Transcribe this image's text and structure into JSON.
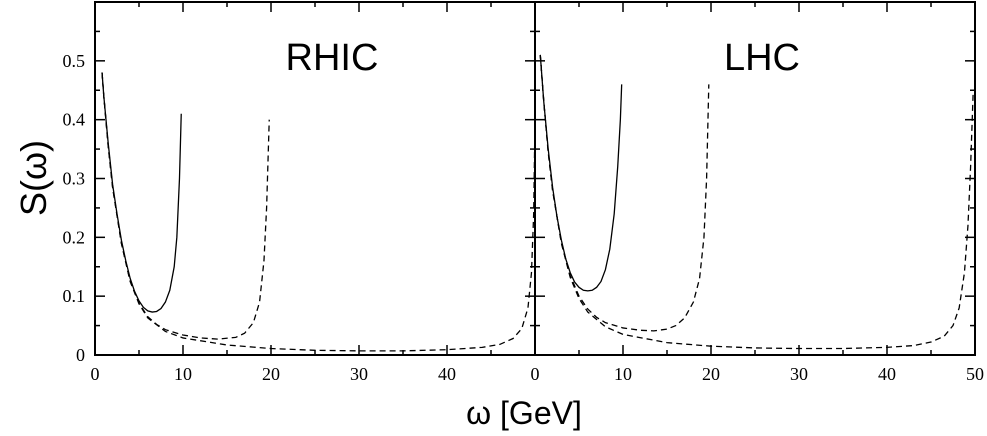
{
  "chart_data": {
    "type": "line",
    "ylabel": "S(ω)",
    "xlabel": "ω [GeV]",
    "xlim": [
      0,
      50
    ],
    "ylim": [
      0,
      0.6
    ],
    "x_ticks": [
      0,
      10,
      20,
      30,
      40,
      50
    ],
    "y_ticks": [
      0,
      0.1,
      0.2,
      0.3,
      0.4,
      0.5
    ],
    "shared_y_axis": true,
    "panels": [
      {
        "title": "RHIC",
        "series": [
          {
            "style": "solid",
            "points": [
              [
                0.8,
                0.48
              ],
              [
                1.0,
                0.44
              ],
              [
                1.5,
                0.36
              ],
              [
                2.0,
                0.29
              ],
              [
                2.5,
                0.24
              ],
              [
                3.0,
                0.195
              ],
              [
                3.5,
                0.16
              ],
              [
                4.0,
                0.13
              ],
              [
                4.5,
                0.108
              ],
              [
                5.0,
                0.092
              ],
              [
                5.5,
                0.081
              ],
              [
                6.0,
                0.075
              ],
              [
                6.5,
                0.073
              ],
              [
                7.0,
                0.074
              ],
              [
                7.5,
                0.079
              ],
              [
                8.0,
                0.09
              ],
              [
                8.5,
                0.11
              ],
              [
                9.0,
                0.15
              ],
              [
                9.3,
                0.2
              ],
              [
                9.6,
                0.3
              ],
              [
                9.8,
                0.41
              ]
            ]
          },
          {
            "style": "dashed",
            "points": [
              [
                0.8,
                0.48
              ],
              [
                1.0,
                0.44
              ],
              [
                1.5,
                0.355
              ],
              [
                2.0,
                0.285
              ],
              [
                3.0,
                0.19
              ],
              [
                4.0,
                0.125
              ],
              [
                5.0,
                0.088
              ],
              [
                6.0,
                0.065
              ],
              [
                7.0,
                0.052
              ],
              [
                8.0,
                0.043
              ],
              [
                10.0,
                0.034
              ],
              [
                12.0,
                0.029
              ],
              [
                14.0,
                0.027
              ],
              [
                16.0,
                0.03
              ],
              [
                17.0,
                0.037
              ],
              [
                18.0,
                0.055
              ],
              [
                18.7,
                0.09
              ],
              [
                19.2,
                0.16
              ],
              [
                19.5,
                0.25
              ],
              [
                19.8,
                0.4
              ]
            ]
          },
          {
            "style": "dashed",
            "points": [
              [
                0.8,
                0.48
              ],
              [
                1.0,
                0.44
              ],
              [
                1.5,
                0.355
              ],
              [
                2.0,
                0.285
              ],
              [
                3.0,
                0.19
              ],
              [
                4.0,
                0.125
              ],
              [
                5.0,
                0.087
              ],
              [
                6.0,
                0.063
              ],
              [
                8.0,
                0.04
              ],
              [
                10.0,
                0.029
              ],
              [
                15.0,
                0.017
              ],
              [
                20.0,
                0.011
              ],
              [
                25.0,
                0.008
              ],
              [
                30.0,
                0.007
              ],
              [
                35.0,
                0.007
              ],
              [
                40.0,
                0.009
              ],
              [
                44.0,
                0.013
              ],
              [
                46.0,
                0.018
              ],
              [
                47.5,
                0.028
              ],
              [
                48.5,
                0.045
              ],
              [
                49.2,
                0.08
              ],
              [
                49.6,
                0.14
              ],
              [
                49.85,
                0.24
              ],
              [
                50.0,
                0.4
              ]
            ]
          }
        ]
      },
      {
        "title": "LHC",
        "series": [
          {
            "style": "solid",
            "points": [
              [
                0.6,
                0.51
              ],
              [
                1.0,
                0.43
              ],
              [
                1.5,
                0.35
              ],
              [
                2.0,
                0.285
              ],
              [
                2.5,
                0.235
              ],
              [
                3.0,
                0.195
              ],
              [
                3.5,
                0.163
              ],
              [
                4.0,
                0.14
              ],
              [
                4.5,
                0.124
              ],
              [
                5.0,
                0.115
              ],
              [
                5.5,
                0.11
              ],
              [
                6.0,
                0.109
              ],
              [
                6.5,
                0.11
              ],
              [
                7.0,
                0.115
              ],
              [
                7.5,
                0.125
              ],
              [
                8.0,
                0.145
              ],
              [
                8.5,
                0.18
              ],
              [
                9.0,
                0.24
              ],
              [
                9.4,
                0.32
              ],
              [
                9.7,
                0.4
              ],
              [
                9.85,
                0.46
              ]
            ]
          },
          {
            "style": "dashed",
            "points": [
              [
                0.6,
                0.51
              ],
              [
                1.0,
                0.43
              ],
              [
                1.5,
                0.345
              ],
              [
                2.0,
                0.28
              ],
              [
                3.0,
                0.19
              ],
              [
                4.0,
                0.135
              ],
              [
                5.0,
                0.1
              ],
              [
                6.0,
                0.078
              ],
              [
                7.0,
                0.064
              ],
              [
                8.0,
                0.055
              ],
              [
                10.0,
                0.046
              ],
              [
                12.0,
                0.042
              ],
              [
                13.5,
                0.041
              ],
              [
                15.0,
                0.044
              ],
              [
                16.0,
                0.05
              ],
              [
                17.0,
                0.063
              ],
              [
                18.0,
                0.09
              ],
              [
                18.7,
                0.13
              ],
              [
                19.2,
                0.2
              ],
              [
                19.5,
                0.3
              ],
              [
                19.75,
                0.46
              ]
            ]
          },
          {
            "style": "dashed",
            "points": [
              [
                0.6,
                0.51
              ],
              [
                1.0,
                0.43
              ],
              [
                1.5,
                0.345
              ],
              [
                2.0,
                0.28
              ],
              [
                3.0,
                0.19
              ],
              [
                4.0,
                0.132
              ],
              [
                5.0,
                0.096
              ],
              [
                6.0,
                0.073
              ],
              [
                8.0,
                0.048
              ],
              [
                10.0,
                0.035
              ],
              [
                15.0,
                0.021
              ],
              [
                20.0,
                0.015
              ],
              [
                25.0,
                0.012
              ],
              [
                30.0,
                0.011
              ],
              [
                35.0,
                0.011
              ],
              [
                40.0,
                0.013
              ],
              [
                43.0,
                0.016
              ],
              [
                45.0,
                0.022
              ],
              [
                46.5,
                0.032
              ],
              [
                47.5,
                0.05
              ],
              [
                48.2,
                0.08
              ],
              [
                48.8,
                0.14
              ],
              [
                49.2,
                0.22
              ],
              [
                49.5,
                0.32
              ],
              [
                49.8,
                0.45
              ]
            ]
          }
        ]
      }
    ]
  }
}
